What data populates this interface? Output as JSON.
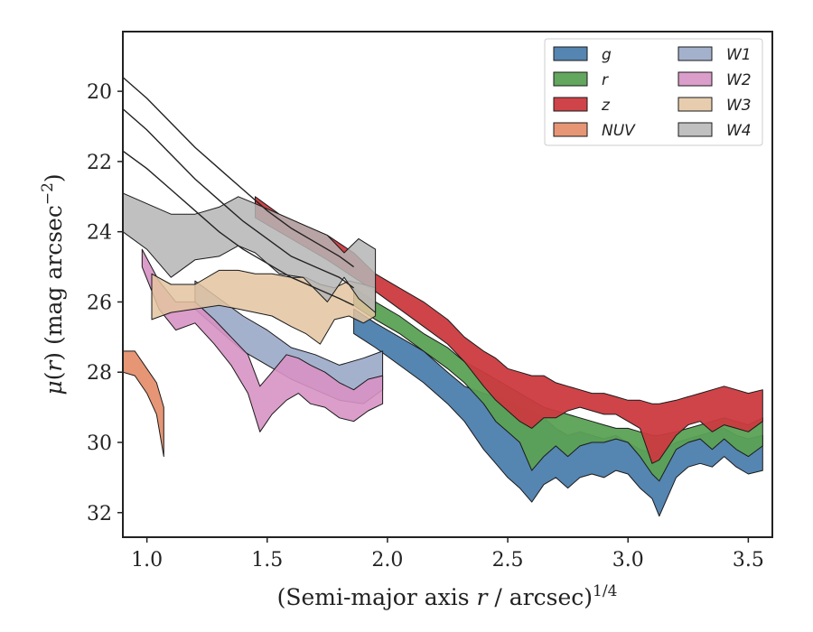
{
  "chart_data": {
    "type": "area",
    "xlabel": "(Semi-major axis r / arcsec)",
    "xlabel_parts": {
      "before": "(Semi-major axis ",
      "var": "r",
      "after": " / arcsec)",
      "sup": "1/4"
    },
    "ylabel_parts": {
      "mu": "μ",
      "open": "(",
      "var": "r",
      "close": ")",
      "unit": " (mag arcsec",
      "sup": "−2",
      "end": ")"
    },
    "xlim": [
      0.9,
      3.6
    ],
    "ylim": [
      32.7,
      18.3
    ],
    "y_inverted": true,
    "x_ticks": [
      1.0,
      1.5,
      2.0,
      2.5,
      3.0,
      3.5
    ],
    "x_tick_labels": [
      "1.0",
      "1.5",
      "2.0",
      "2.5",
      "3.0",
      "3.5"
    ],
    "y_ticks": [
      20,
      22,
      24,
      26,
      28,
      30,
      32
    ],
    "y_tick_labels": [
      "20",
      "22",
      "24",
      "26",
      "28",
      "30",
      "32"
    ],
    "grid": false,
    "legend_position": "top-right",
    "legend_columns": 2,
    "series": [
      {
        "name": "g",
        "color": "#4c7ead",
        "opacity": 0.95,
        "x": [
          1.86,
          1.95,
          2.05,
          2.15,
          2.25,
          2.32,
          2.4,
          2.45,
          2.5,
          2.55,
          2.6,
          2.65,
          2.7,
          2.75,
          2.8,
          2.85,
          2.9,
          2.95,
          3.0,
          3.05,
          3.1,
          3.13,
          3.2,
          3.25,
          3.3,
          3.35,
          3.4,
          3.45,
          3.5,
          3.56
        ],
        "y_upper": [
          26.2,
          26.6,
          27.0,
          27.4,
          28.0,
          28.4,
          28.6,
          28.7,
          28.8,
          29.0,
          29.1,
          29.3,
          29.6,
          29.8,
          29.7,
          29.8,
          29.9,
          29.8,
          30.0,
          30.2,
          30.3,
          30.3,
          30.0,
          29.9,
          29.8,
          29.7,
          29.6,
          29.8,
          29.9,
          29.8
        ],
        "y_lower": [
          26.9,
          27.3,
          27.8,
          28.3,
          28.9,
          29.4,
          30.2,
          30.6,
          31.0,
          31.3,
          31.7,
          31.2,
          31.0,
          31.3,
          31.0,
          30.9,
          31.0,
          30.8,
          30.9,
          31.3,
          31.6,
          32.1,
          31.0,
          30.7,
          30.6,
          30.7,
          30.4,
          30.7,
          30.9,
          30.8
        ]
      },
      {
        "name": "r",
        "color": "#5ba155",
        "opacity": 0.95,
        "x": [
          1.86,
          1.95,
          2.05,
          2.15,
          2.25,
          2.32,
          2.4,
          2.45,
          2.5,
          2.55,
          2.6,
          2.65,
          2.7,
          2.75,
          2.8,
          2.85,
          2.9,
          2.95,
          3.0,
          3.05,
          3.1,
          3.13,
          3.2,
          3.25,
          3.3,
          3.35,
          3.4,
          3.45,
          3.5,
          3.56
        ],
        "y_upper": [
          25.6,
          26.0,
          26.4,
          26.9,
          27.3,
          27.7,
          28.0,
          28.2,
          28.4,
          28.6,
          28.8,
          29.0,
          29.1,
          29.2,
          29.3,
          29.4,
          29.5,
          29.6,
          29.6,
          29.7,
          29.8,
          29.8,
          29.7,
          29.6,
          29.5,
          29.4,
          29.3,
          29.4,
          29.5,
          29.3
        ],
        "y_lower": [
          26.1,
          26.5,
          26.9,
          27.4,
          27.9,
          28.3,
          28.9,
          29.4,
          29.7,
          30.0,
          30.8,
          30.4,
          30.1,
          30.4,
          30.1,
          30.0,
          30.0,
          29.9,
          30.0,
          30.4,
          30.9,
          31.1,
          30.2,
          30.0,
          29.9,
          30.2,
          29.9,
          30.2,
          30.4,
          30.1
        ]
      },
      {
        "name": "z",
        "color": "#cb3a3f",
        "opacity": 0.95,
        "x": [
          1.45,
          1.55,
          1.65,
          1.75,
          1.86,
          1.95,
          2.05,
          2.15,
          2.25,
          2.32,
          2.4,
          2.45,
          2.5,
          2.55,
          2.6,
          2.65,
          2.7,
          2.75,
          2.8,
          2.85,
          2.9,
          2.95,
          3.0,
          3.05,
          3.1,
          3.13,
          3.2,
          3.25,
          3.3,
          3.35,
          3.4,
          3.45,
          3.5,
          3.56
        ],
        "y_upper": [
          23.0,
          23.5,
          23.8,
          24.1,
          24.6,
          25.2,
          25.6,
          26.0,
          26.5,
          27.0,
          27.4,
          27.6,
          27.9,
          28.0,
          28.1,
          28.1,
          28.3,
          28.4,
          28.5,
          28.6,
          28.6,
          28.7,
          28.8,
          28.8,
          28.9,
          28.9,
          28.8,
          28.7,
          28.6,
          28.5,
          28.4,
          28.5,
          28.6,
          28.5
        ],
        "y_lower": [
          23.6,
          24.0,
          24.4,
          24.8,
          25.3,
          25.7,
          26.2,
          26.7,
          27.2,
          27.7,
          28.4,
          28.8,
          29.1,
          29.4,
          29.6,
          29.3,
          29.3,
          29.1,
          29.0,
          29.1,
          29.2,
          29.2,
          29.4,
          29.6,
          30.6,
          30.5,
          29.8,
          29.5,
          29.4,
          29.7,
          29.5,
          29.6,
          29.7,
          29.4
        ]
      },
      {
        "name": "NUV",
        "color": "#e5906e",
        "opacity": 0.95,
        "x": [
          0.9,
          0.95,
          1.0,
          1.04,
          1.07
        ],
        "y_upper": [
          27.4,
          27.4,
          27.9,
          28.3,
          29.0
        ],
        "y_lower": [
          28.0,
          28.1,
          28.6,
          29.2,
          30.4
        ]
      },
      {
        "name": "W1",
        "color": "#9aa8c8",
        "opacity": 0.9,
        "x": [
          1.2,
          1.3,
          1.4,
          1.5,
          1.6,
          1.7,
          1.8,
          1.9,
          1.98
        ],
        "y_upper": [
          25.4,
          25.9,
          26.4,
          26.8,
          27.3,
          27.5,
          27.8,
          27.6,
          27.4
        ],
        "y_lower": [
          26.2,
          26.8,
          27.4,
          27.8,
          28.2,
          28.5,
          28.8,
          28.9,
          28.5
        ]
      },
      {
        "name": "W2",
        "color": "#d792c4",
        "opacity": 0.9,
        "x": [
          0.98,
          1.05,
          1.12,
          1.2,
          1.28,
          1.35,
          1.42,
          1.47,
          1.52,
          1.58,
          1.63,
          1.68,
          1.74,
          1.8,
          1.86,
          1.92,
          1.98
        ],
        "y_upper": [
          24.5,
          25.4,
          26.0,
          26.0,
          26.5,
          27.0,
          27.5,
          28.4,
          28.0,
          27.5,
          27.6,
          27.8,
          28.0,
          28.3,
          28.5,
          28.2,
          28.1
        ],
        "y_lower": [
          25.0,
          26.2,
          26.8,
          26.6,
          27.2,
          27.8,
          28.6,
          29.7,
          29.2,
          28.8,
          28.6,
          28.9,
          29.0,
          29.3,
          29.4,
          29.1,
          28.9
        ]
      },
      {
        "name": "W3",
        "color": "#e3c4a0",
        "opacity": 0.85,
        "x": [
          1.02,
          1.1,
          1.2,
          1.3,
          1.38,
          1.45,
          1.52,
          1.6,
          1.66,
          1.72,
          1.78,
          1.84,
          1.9,
          1.95
        ],
        "y_upper": [
          25.2,
          25.5,
          25.5,
          25.1,
          25.1,
          25.2,
          25.2,
          25.3,
          25.3,
          25.5,
          25.6,
          25.4,
          25.5,
          25.6
        ],
        "y_lower": [
          26.5,
          26.3,
          26.2,
          26.1,
          26.2,
          26.3,
          26.4,
          26.7,
          26.9,
          27.2,
          26.5,
          26.4,
          26.6,
          26.4
        ]
      },
      {
        "name": "W4",
        "color": "#b5b5b5",
        "opacity": 0.85,
        "x": [
          0.9,
          1.0,
          1.1,
          1.2,
          1.3,
          1.38,
          1.45,
          1.55,
          1.65,
          1.75,
          1.82,
          1.88,
          1.95
        ],
        "y_upper": [
          22.9,
          23.2,
          23.5,
          23.5,
          23.3,
          23.0,
          23.2,
          23.5,
          23.8,
          24.1,
          24.6,
          24.2,
          24.5
        ],
        "y_lower": [
          24.0,
          24.5,
          25.3,
          24.8,
          24.7,
          24.4,
          24.6,
          25.2,
          25.3,
          26.0,
          25.3,
          25.9,
          26.3
        ]
      }
    ],
    "profile_lines": [
      {
        "x": [
          0.9,
          1.0,
          1.1,
          1.2,
          1.3,
          1.4,
          1.5,
          1.6,
          1.7,
          1.8,
          1.86
        ],
        "y": [
          19.6,
          20.2,
          20.9,
          21.6,
          22.2,
          22.8,
          23.4,
          23.9,
          24.3,
          24.7,
          25.0
        ]
      },
      {
        "x": [
          0.9,
          1.0,
          1.1,
          1.2,
          1.3,
          1.4,
          1.5,
          1.6,
          1.7,
          1.8,
          1.86
        ],
        "y": [
          20.5,
          21.1,
          21.8,
          22.5,
          23.1,
          23.7,
          24.2,
          24.7,
          25.0,
          25.3,
          25.6
        ]
      },
      {
        "x": [
          0.9,
          1.0,
          1.1,
          1.2,
          1.3,
          1.4,
          1.5,
          1.6,
          1.7,
          1.8,
          1.86
        ],
        "y": [
          21.7,
          22.2,
          22.8,
          23.4,
          24.0,
          24.5,
          24.9,
          25.3,
          25.6,
          25.9,
          26.1
        ]
      }
    ]
  }
}
